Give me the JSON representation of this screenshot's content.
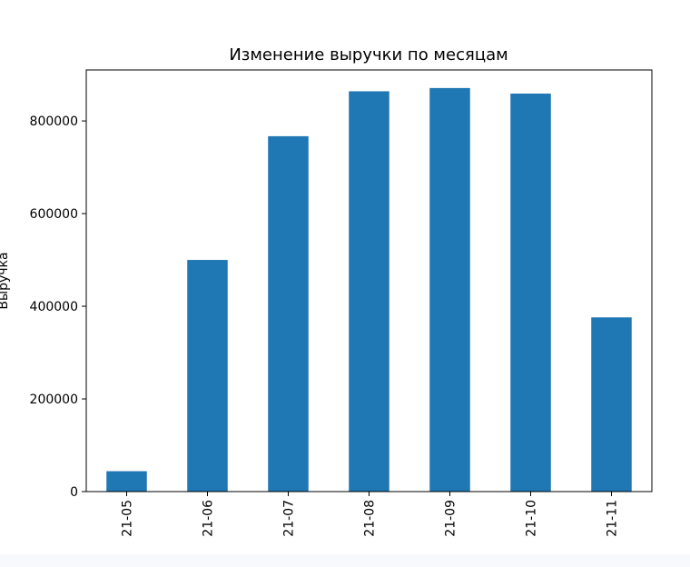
{
  "chart_data": {
    "type": "bar",
    "title": "Изменение выручки по месяцам",
    "xlabel": "",
    "ylabel": "Выручка",
    "categories": [
      "2021-05",
      "2021-06",
      "2021-07",
      "2021-08",
      "2021-09",
      "2021-10",
      "2021-11"
    ],
    "category_labels_visible": [
      "21-05",
      "21-06",
      "21-07",
      "21-08",
      "21-09",
      "21-10",
      "21-11"
    ],
    "values": [
      44000,
      500000,
      767000,
      864000,
      871000,
      859000,
      376000
    ],
    "ylim": [
      0,
      910000
    ],
    "yticks": [
      0,
      200000,
      400000,
      600000,
      800000
    ],
    "ytick_labels": [
      "0",
      "200000",
      "400000",
      "600000",
      "800000"
    ],
    "grid": false,
    "legend": "none",
    "bar_color": "#1f77b4"
  }
}
